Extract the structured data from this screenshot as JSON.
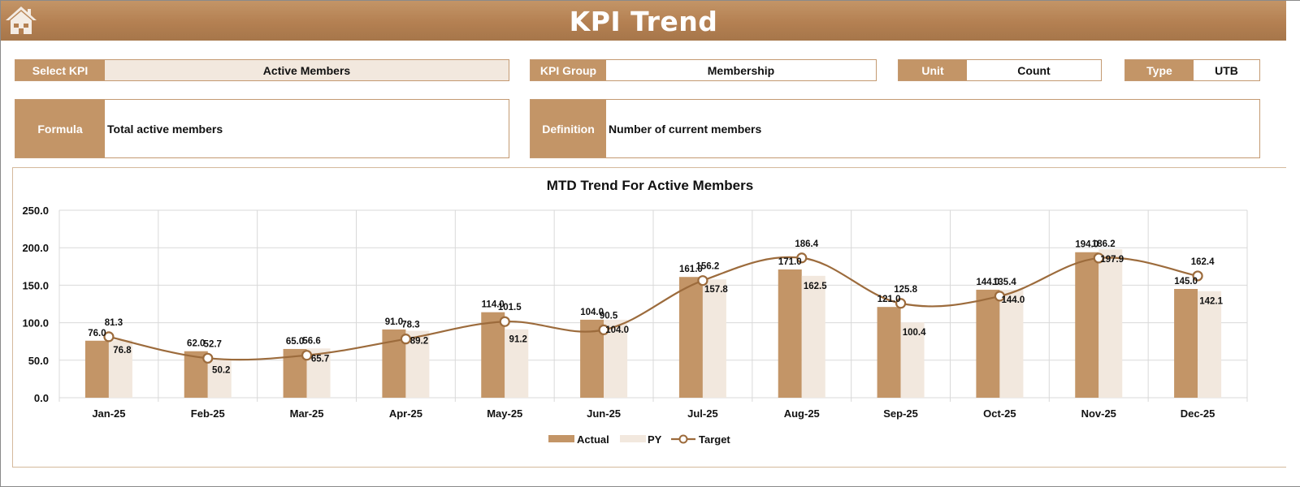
{
  "header": {
    "title": "KPI Trend",
    "home_icon": "home-icon"
  },
  "filters": {
    "select_kpi": {
      "label": "Select KPI",
      "value": "Active Members"
    },
    "kpi_group": {
      "label": "KPI Group",
      "value": "Membership"
    },
    "unit": {
      "label": "Unit",
      "value": "Count"
    },
    "type": {
      "label": "Type",
      "value": "UTB"
    }
  },
  "info": {
    "formula": {
      "label": "Formula",
      "value": "Total active members"
    },
    "definition": {
      "label": "Definition",
      "value": "Number of current members"
    }
  },
  "colors": {
    "actual": "#c39567",
    "py": "#f2e8de",
    "target": "#9c6b3c",
    "header": "#b48052"
  },
  "chart_data": {
    "type": "bar",
    "title": "MTD Trend For Active Members",
    "xlabel": "",
    "ylabel": "",
    "ylim": [
      0,
      250
    ],
    "yticks": [
      "0.0",
      "50.0",
      "100.0",
      "150.0",
      "200.0",
      "250.0"
    ],
    "grid": true,
    "legend_position": "bottom",
    "categories": [
      "Jan-25",
      "Feb-25",
      "Mar-25",
      "Apr-25",
      "May-25",
      "Jun-25",
      "Jul-25",
      "Aug-25",
      "Sep-25",
      "Oct-25",
      "Nov-25",
      "Dec-25"
    ],
    "series": [
      {
        "name": "Actual",
        "type": "bar",
        "values": [
          76.0,
          62.0,
          65.0,
          91.0,
          114.0,
          104.0,
          161.0,
          171.0,
          121.0,
          144.0,
          194.0,
          145.0
        ]
      },
      {
        "name": "PY",
        "type": "bar",
        "values": [
          76.8,
          50.2,
          65.7,
          89.2,
          91.2,
          104.0,
          157.8,
          162.5,
          100.4,
          144.0,
          197.9,
          142.1
        ]
      },
      {
        "name": "Target",
        "type": "line",
        "values": [
          81.3,
          52.7,
          56.6,
          78.3,
          101.5,
          90.5,
          156.2,
          186.4,
          125.8,
          135.4,
          186.2,
          162.4
        ]
      }
    ],
    "legend": [
      "Actual",
      "PY",
      "Target"
    ]
  }
}
